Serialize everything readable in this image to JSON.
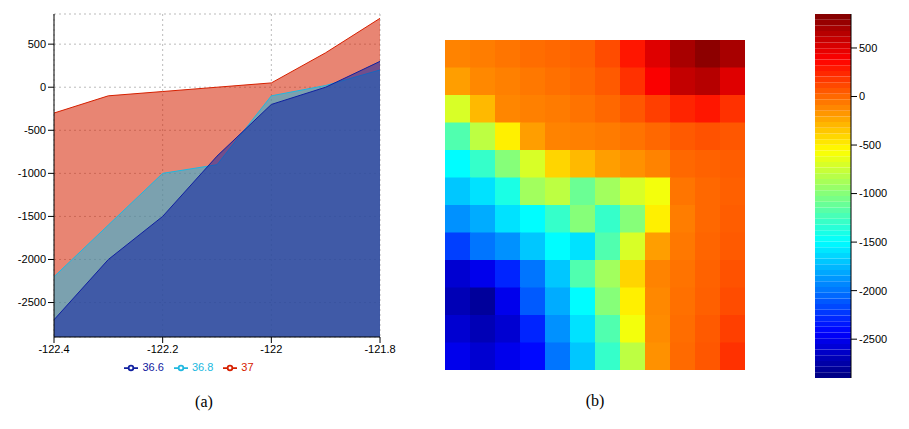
{
  "chart_data": [
    {
      "type": "area",
      "caption": "(a)",
      "x": [
        -122.4,
        -122.3,
        -122.2,
        -122.1,
        -122.0,
        -121.9,
        -121.8
      ],
      "series": [
        {
          "name": "37",
          "color": "#d62000",
          "values": [
            -300,
            -100,
            -50,
            0,
            50,
            400,
            800
          ]
        },
        {
          "name": "36.8",
          "color": "#20b8e0",
          "values": [
            -2200,
            -1600,
            -1000,
            -900,
            -100,
            20,
            200
          ]
        },
        {
          "name": "36.6",
          "color": "#1020a0",
          "values": [
            -2700,
            -2000,
            -1500,
            -800,
            -200,
            0,
            300
          ]
        }
      ],
      "xlim": [
        -122.4,
        -121.8
      ],
      "xticks": [
        -122.4,
        -122.2,
        -122,
        -121.8
      ],
      "ylim": [
        -2900,
        850
      ],
      "yticks": [
        -2500,
        -2000,
        -1500,
        -1000,
        -500,
        0,
        500
      ],
      "grid": true,
      "legend": "bottom"
    },
    {
      "type": "heatmap",
      "caption": "(b)",
      "tick_labels": false,
      "cells": [
        [
          -100,
          -80,
          -50,
          -20,
          0,
          20,
          100,
          300,
          500,
          700,
          800,
          700
        ],
        [
          -200,
          -120,
          -90,
          -60,
          -30,
          0,
          50,
          200,
          400,
          600,
          650,
          500
        ],
        [
          -700,
          -300,
          -110,
          -90,
          -70,
          -40,
          0,
          60,
          150,
          250,
          300,
          200
        ],
        [
          -1200,
          -800,
          -500,
          -200,
          -100,
          -90,
          -70,
          -40,
          0,
          50,
          80,
          60
        ],
        [
          -1500,
          -1300,
          -1000,
          -700,
          -400,
          -300,
          -200,
          -150,
          -100,
          0,
          20,
          40
        ],
        [
          -1700,
          -1600,
          -1400,
          -900,
          -800,
          -1100,
          -900,
          -700,
          -600,
          -50,
          0,
          30
        ],
        [
          -1900,
          -1800,
          -1600,
          -1500,
          -1300,
          -1000,
          -1300,
          -1000,
          -500,
          -80,
          0,
          40
        ],
        [
          -2200,
          -2000,
          -1900,
          -1700,
          -1500,
          -1600,
          -1200,
          -700,
          -200,
          -60,
          10,
          50
        ],
        [
          -2600,
          -2500,
          -2300,
          -2000,
          -1700,
          -1200,
          -900,
          -400,
          -100,
          -40,
          20,
          80
        ],
        [
          -2700,
          -2800,
          -2500,
          -2100,
          -1800,
          -1500,
          -1000,
          -500,
          -120,
          -30,
          30,
          100
        ],
        [
          -2600,
          -2700,
          -2600,
          -2300,
          -1900,
          -1600,
          -1200,
          -600,
          -130,
          -20,
          50,
          150
        ],
        [
          -2500,
          -2600,
          -2500,
          -2400,
          -2000,
          -1700,
          -1300,
          -800,
          -150,
          -10,
          60,
          200
        ]
      ],
      "colorbar_range": [
        -2900,
        850
      ],
      "colorbar_ticks": [
        -2500,
        -2000,
        -1500,
        -1000,
        -500,
        0,
        500
      ]
    }
  ]
}
